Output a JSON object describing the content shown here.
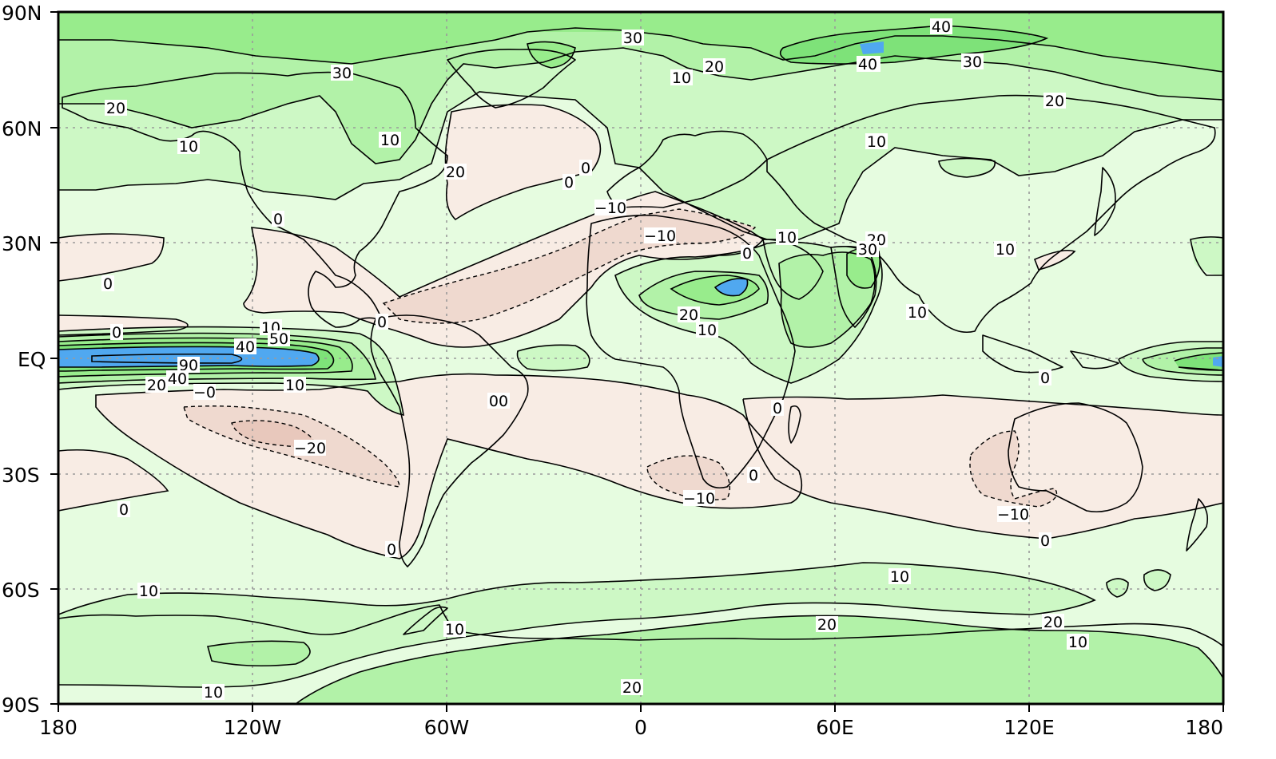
{
  "map": {
    "x_ticks": [
      "180",
      "120W",
      "60W",
      "0",
      "60E",
      "120E",
      "180"
    ],
    "y_ticks": [
      "90N",
      "60N",
      "30N",
      "EQ",
      "30S",
      "60S",
      "90S"
    ],
    "contour_levels": [
      -20,
      -10,
      0,
      10,
      20,
      30,
      40,
      50,
      90
    ],
    "fill_colors": {
      "below_-20": "#e8c8bc",
      "-20_to_-10": "#efd9cf",
      "-10_to_0": "#f8ece4",
      "0_to_10": "#e6fce0",
      "10_to_20": "#cdf8c5",
      "20_to_30": "#b2f2a8",
      "30_to_40": "#98ec8c",
      "40_to_50": "#7ee279",
      "above_50": "#50a8f0"
    },
    "contour_labels": [
      {
        "text": "30"
      },
      {
        "text": "30"
      },
      {
        "text": "20"
      },
      {
        "text": "20"
      },
      {
        "text": "10"
      },
      {
        "text": "10"
      },
      {
        "text": "10"
      },
      {
        "text": "20"
      },
      {
        "text": "30"
      },
      {
        "text": "40"
      },
      {
        "text": "40"
      },
      {
        "text": "30"
      },
      {
        "text": "20"
      },
      {
        "text": "10"
      },
      {
        "text": "0"
      },
      {
        "text": "0"
      },
      {
        "text": "0"
      },
      {
        "text": "−10"
      },
      {
        "text": "−10"
      },
      {
        "text": "10"
      },
      {
        "text": "0"
      },
      {
        "text": "20"
      },
      {
        "text": "30"
      },
      {
        "text": "20"
      },
      {
        "text": "10"
      },
      {
        "text": "10"
      },
      {
        "text": "10"
      },
      {
        "text": "0"
      },
      {
        "text": "0"
      },
      {
        "text": "0"
      },
      {
        "text": "10"
      },
      {
        "text": "40"
      },
      {
        "text": "50"
      },
      {
        "text": "90"
      },
      {
        "text": "40"
      },
      {
        "text": "20"
      },
      {
        "text": "−0"
      },
      {
        "text": "10"
      },
      {
        "text": "−20"
      },
      {
        "text": "00"
      },
      {
        "text": "0"
      },
      {
        "text": "0"
      },
      {
        "text": "−10"
      },
      {
        "text": "0"
      },
      {
        "text": "0"
      },
      {
        "text": "−10"
      },
      {
        "text": "0"
      },
      {
        "text": "0"
      },
      {
        "text": "10"
      },
      {
        "text": "10"
      },
      {
        "text": "10"
      },
      {
        "text": "20"
      },
      {
        "text": "10"
      },
      {
        "text": "20"
      },
      {
        "text": "10"
      },
      {
        "text": "20"
      }
    ]
  }
}
